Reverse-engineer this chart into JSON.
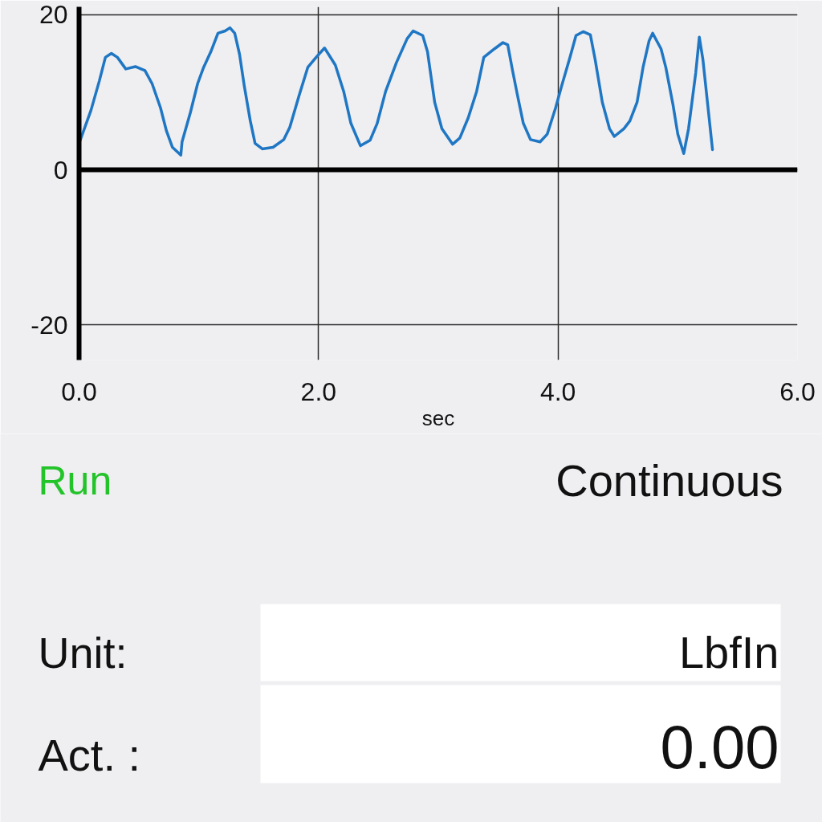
{
  "chart_data": {
    "type": "line",
    "xlabel": "sec",
    "x": [
      0.0,
      0.1,
      0.17,
      0.22,
      0.27,
      0.32,
      0.39,
      0.47,
      0.55,
      0.61,
      0.68,
      0.73,
      0.78,
      0.85,
      0.86,
      0.93,
      0.99,
      1.04,
      1.1,
      1.16,
      1.22,
      1.26,
      1.3,
      1.34,
      1.38,
      1.43,
      1.47,
      1.53,
      1.62,
      1.71,
      1.76,
      1.84,
      1.91,
      1.98,
      2.05,
      2.14,
      2.21,
      2.27,
      2.35,
      2.43,
      2.49,
      2.56,
      2.65,
      2.74,
      2.79,
      2.87,
      2.91,
      2.97,
      3.03,
      3.12,
      3.18,
      3.25,
      3.32,
      3.38,
      3.47,
      3.54,
      3.58,
      3.62,
      3.66,
      3.71,
      3.77,
      3.85,
      3.91,
      3.98,
      4.03,
      4.1,
      4.15,
      4.21,
      4.27,
      4.31,
      4.37,
      4.43,
      4.47,
      4.55,
      4.6,
      4.66,
      4.71,
      4.76,
      4.79,
      4.86,
      4.9,
      4.96,
      5.0,
      5.05,
      5.09,
      5.15,
      5.18,
      5.21,
      5.25,
      5.29
    ],
    "series": [
      {
        "color": "#1f77c4",
        "values": [
          3.4,
          7.7,
          11.5,
          14.5,
          15.0,
          14.5,
          13.0,
          13.3,
          12.8,
          11.1,
          8.0,
          5.0,
          2.9,
          1.9,
          3.6,
          7.4,
          11.1,
          13.2,
          15.2,
          17.6,
          17.9,
          18.3,
          17.6,
          14.9,
          10.8,
          6.3,
          3.4,
          2.7,
          2.9,
          3.9,
          5.5,
          9.7,
          13.2,
          14.5,
          15.7,
          13.5,
          10.1,
          6.0,
          3.1,
          3.8,
          6.0,
          10.1,
          13.8,
          16.9,
          17.9,
          17.3,
          15.2,
          8.7,
          5.3,
          3.3,
          4.1,
          6.7,
          10.1,
          14.5,
          15.6,
          16.4,
          16.1,
          12.8,
          9.7,
          6.0,
          3.9,
          3.6,
          4.6,
          8.0,
          10.8,
          14.5,
          17.3,
          17.8,
          17.4,
          14.2,
          8.7,
          5.3,
          4.3,
          5.3,
          6.3,
          8.7,
          13.2,
          16.6,
          17.6,
          15.6,
          13.2,
          8.4,
          4.6,
          2.1,
          5.3,
          12.5,
          17.1,
          14.2,
          8.4,
          2.6
        ]
      }
    ],
    "xlim": [
      0,
      6
    ],
    "ylim": [
      -24.5,
      21
    ],
    "xticks": [
      {
        "value": 0,
        "label": "0.0"
      },
      {
        "value": 2,
        "label": "2.0"
      },
      {
        "value": 4,
        "label": "4.0"
      },
      {
        "value": 6,
        "label": "6.0"
      }
    ],
    "yticks": [
      -20,
      0,
      20
    ],
    "grid": true,
    "ref_lines": [
      {
        "axis": "y",
        "value": 0,
        "color": "#000000"
      }
    ],
    "annotations": [
      "Run",
      "Continuous",
      "Unit:",
      "LbfIn",
      "Act. :",
      "0.00"
    ]
  }
}
